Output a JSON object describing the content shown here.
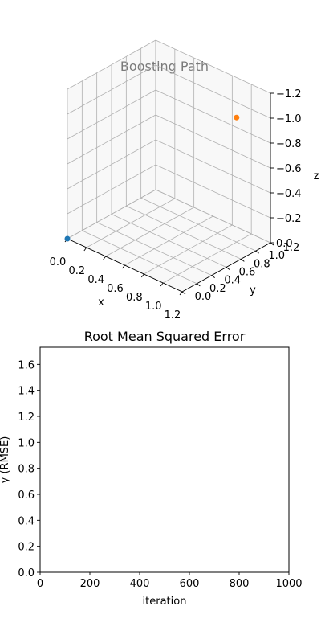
{
  "chart_data": [
    {
      "type": "scatter",
      "projection": "3d",
      "title": "Boosting Path",
      "xlabel": "x",
      "ylabel": "y",
      "zlabel": "z",
      "xlim": [
        0,
        1.2
      ],
      "ylim": [
        0,
        1.2
      ],
      "zlim": [
        -1.2,
        0
      ],
      "z_axis_inverted": true,
      "grid": true,
      "x_ticks": [
        "0.0",
        "0.2",
        "0.4",
        "0.6",
        "0.8",
        "1.0",
        "1.2"
      ],
      "y_ticks": [
        "0.0",
        "0.2",
        "0.4",
        "0.6",
        "0.8",
        "1.0",
        "1.2"
      ],
      "z_ticks": [
        "0.0",
        "−0.2",
        "−0.4",
        "−0.6",
        "−0.8",
        "−1.0",
        "−1.2"
      ],
      "points": [
        {
          "x": 0.0,
          "y": 0.0,
          "z": 0.0,
          "color": "#1f77b4"
        },
        {
          "x": 1.0,
          "y": 1.0,
          "z": -1.0,
          "color": "#ff7f0e"
        }
      ]
    },
    {
      "type": "line",
      "title": "Root Mean Squared Error",
      "xlabel": "iteration",
      "ylabel": "y (RMSE)",
      "xlim": [
        0,
        1000
      ],
      "ylim": [
        0,
        1.732
      ],
      "grid": false,
      "x_ticks": [
        "0",
        "200",
        "400",
        "600",
        "800",
        "1000"
      ],
      "y_ticks": [
        "0.0",
        "0.2",
        "0.4",
        "0.6",
        "0.8",
        "1.0",
        "1.2",
        "1.4",
        "1.6"
      ],
      "series": []
    }
  ]
}
